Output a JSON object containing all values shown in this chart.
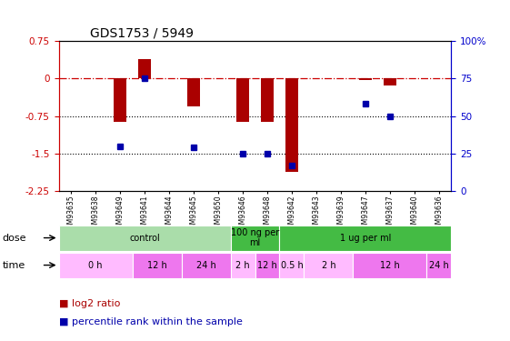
{
  "title": "GDS1753 / 5949",
  "samples": [
    "GSM93635",
    "GSM93638",
    "GSM93649",
    "GSM93641",
    "GSM93644",
    "GSM93645",
    "GSM93650",
    "GSM93646",
    "GSM93648",
    "GSM93642",
    "GSM93643",
    "GSM93639",
    "GSM93647",
    "GSM93637",
    "GSM93640",
    "GSM93636"
  ],
  "log2_ratio": [
    0.0,
    0.0,
    -0.87,
    0.38,
    0.0,
    -0.55,
    0.0,
    -0.87,
    -0.87,
    -1.87,
    0.0,
    0.0,
    -0.04,
    -0.14,
    0.0,
    0.0
  ],
  "pct_rank": [
    null,
    null,
    30,
    75,
    null,
    29,
    null,
    25,
    25,
    17,
    null,
    null,
    58,
    50,
    null,
    null
  ],
  "ylim_left": [
    -2.25,
    0.75
  ],
  "ylim_right": [
    0,
    100
  ],
  "yticks_left": [
    0.75,
    0.0,
    -0.75,
    -1.5,
    -2.25
  ],
  "ytick_labels_left": [
    "0.75",
    "0",
    "-0.75",
    "-1.5",
    "-2.25"
  ],
  "yticks_right": [
    100,
    75,
    50,
    25,
    0
  ],
  "ytick_labels_right": [
    "100%",
    "75",
    "50",
    "25",
    "0"
  ],
  "dose_groups": [
    {
      "label": "control",
      "start": 0,
      "end": 7,
      "color": "#AADDAA"
    },
    {
      "label": "100 ng per\nml",
      "start": 7,
      "end": 9,
      "color": "#44BB44"
    },
    {
      "label": "1 ug per ml",
      "start": 9,
      "end": 16,
      "color": "#44BB44"
    }
  ],
  "time_groups": [
    {
      "label": "0 h",
      "start": 0,
      "end": 3,
      "color": "#FFBBFF"
    },
    {
      "label": "12 h",
      "start": 3,
      "end": 5,
      "color": "#EE77EE"
    },
    {
      "label": "24 h",
      "start": 5,
      "end": 7,
      "color": "#EE77EE"
    },
    {
      "label": "2 h",
      "start": 7,
      "end": 8,
      "color": "#FFBBFF"
    },
    {
      "label": "12 h",
      "start": 8,
      "end": 9,
      "color": "#EE77EE"
    },
    {
      "label": "0.5 h",
      "start": 9,
      "end": 10,
      "color": "#FFBBFF"
    },
    {
      "label": "2 h",
      "start": 10,
      "end": 12,
      "color": "#FFBBFF"
    },
    {
      "label": "12 h",
      "start": 12,
      "end": 15,
      "color": "#EE77EE"
    },
    {
      "label": "24 h",
      "start": 15,
      "end": 16,
      "color": "#EE77EE"
    }
  ],
  "bar_color": "#AA0000",
  "dot_color": "#0000AA",
  "dashed_line_color": "#CC0000",
  "left_axis_color": "#CC0000",
  "right_axis_color": "#0000CC",
  "legend_items": [
    {
      "symbol": "■",
      "label": " log2 ratio",
      "color": "#AA0000"
    },
    {
      "symbol": "■",
      "label": " percentile rank within the sample",
      "color": "#0000AA"
    }
  ]
}
